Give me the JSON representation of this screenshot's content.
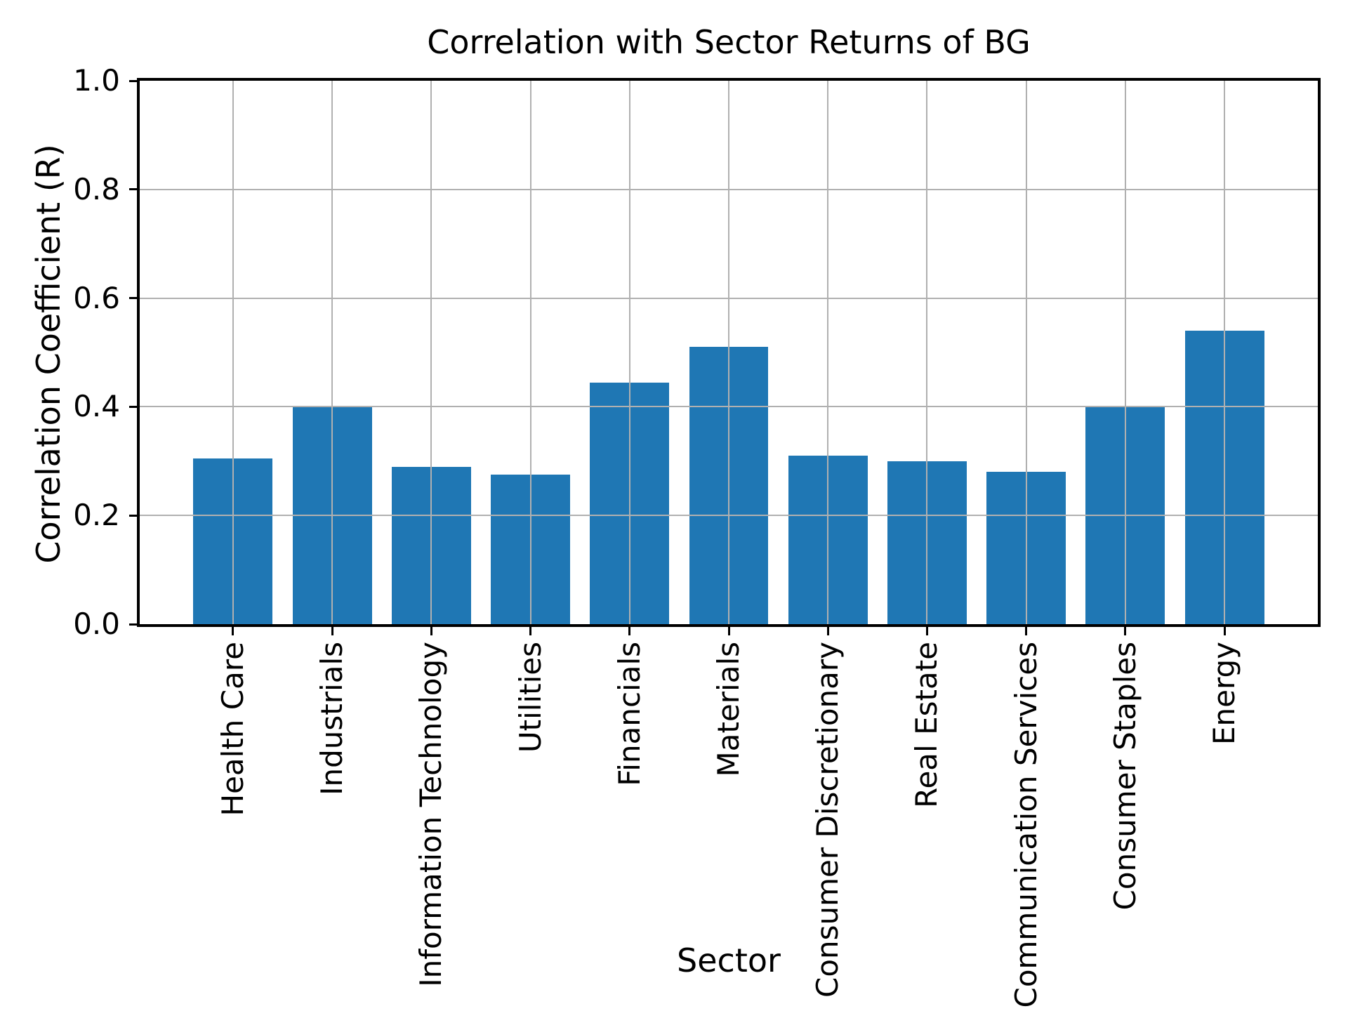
{
  "figure": {
    "background": "#ffffff"
  },
  "chart_data": {
    "type": "bar",
    "title": "Correlation with Sector Returns of BG",
    "xlabel": "Sector",
    "ylabel": "Correlation Coefficient (R)",
    "categories": [
      "Health Care",
      "Industrials",
      "Information Technology",
      "Utilities",
      "Financials",
      "Materials",
      "Consumer Discretionary",
      "Real Estate",
      "Communication Services",
      "Consumer Staples",
      "Energy"
    ],
    "values": [
      0.305,
      0.4,
      0.29,
      0.275,
      0.445,
      0.51,
      0.31,
      0.3,
      0.28,
      0.4,
      0.54
    ],
    "ylim": [
      0.0,
      1.0
    ],
    "yticks": [
      0.0,
      0.2,
      0.4,
      0.6,
      0.8,
      1.0
    ],
    "ytick_labels": [
      "0.0",
      "0.2",
      "0.4",
      "0.6",
      "0.8",
      "1.0"
    ],
    "xtick_rotation": 90,
    "grid": true,
    "legend": false,
    "bar_color": "#1f77b4",
    "grid_color": "#b0b0b0",
    "spine_color": "#000000",
    "text_color": "#000000"
  }
}
